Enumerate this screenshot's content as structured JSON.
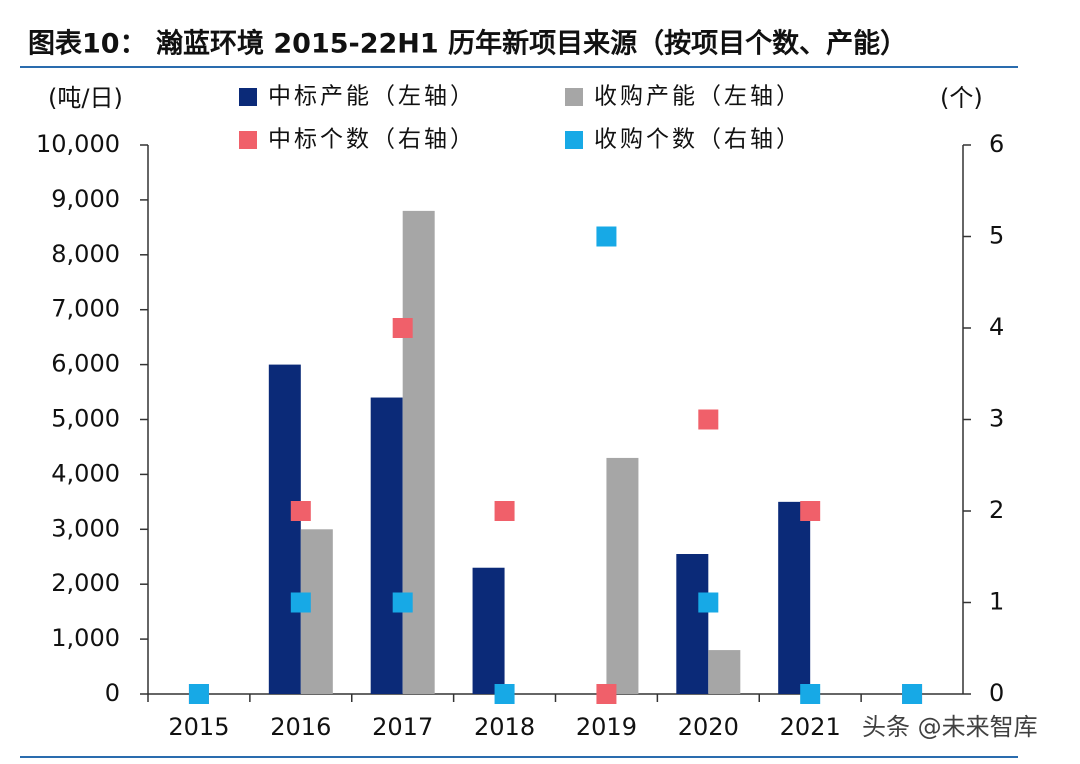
{
  "chart_data": {
    "type": "bar",
    "title": "图表10：  瀚蓝环境 2015-22H1 历年新项目来源（按项目个数、产能）",
    "y_label": "(吨/日)",
    "y2_label": "(个)",
    "watermark": "头条 @未来智库",
    "categories": [
      "2015",
      "2016",
      "2017",
      "2018",
      "2019",
      "2020",
      "2021",
      null
    ],
    "ylim": [
      0,
      10000
    ],
    "yticks": [
      0,
      {
        "value": 1000,
        "label": "1,000"
      },
      {
        "value": 2000,
        "label": "2,000"
      },
      {
        "value": 3000,
        "label": "3,000"
      },
      {
        "value": 4000,
        "label": "4,000"
      },
      {
        "value": 5000,
        "label": "5,000"
      },
      {
        "value": 6000,
        "label": "6,000"
      },
      {
        "value": 7000,
        "label": "7,000"
      },
      {
        "value": 8000,
        "label": "8,000"
      },
      {
        "value": 9000,
        "label": "9,000"
      },
      {
        "value": 10000,
        "label": "10,000"
      }
    ],
    "y2lim": [
      0,
      6
    ],
    "y2ticks": [
      0,
      1,
      2,
      3,
      4,
      5,
      6
    ],
    "series": [
      {
        "name": "中标产能（左轴）",
        "type": "bar",
        "color": "#0b2a78",
        "values": [
          0,
          6000,
          5400,
          2300,
          0,
          2550,
          3500,
          0
        ]
      },
      {
        "name": "收购产能（左轴）",
        "type": "bar",
        "color": "#a6a6a6",
        "values": [
          0,
          3000,
          8800,
          0,
          4300,
          800,
          0,
          0
        ]
      },
      {
        "name": "中标个数（右轴）",
        "type": "scatter",
        "axis": "y2",
        "color": "#f0606a",
        "values": [
          0,
          2,
          4,
          2,
          0,
          3,
          2,
          0
        ]
      },
      {
        "name": "收购个数（右轴）",
        "type": "scatter",
        "axis": "y2",
        "color": "#17a9e6",
        "values": [
          0,
          1,
          1,
          0,
          5,
          1,
          0,
          0
        ]
      }
    ]
  }
}
